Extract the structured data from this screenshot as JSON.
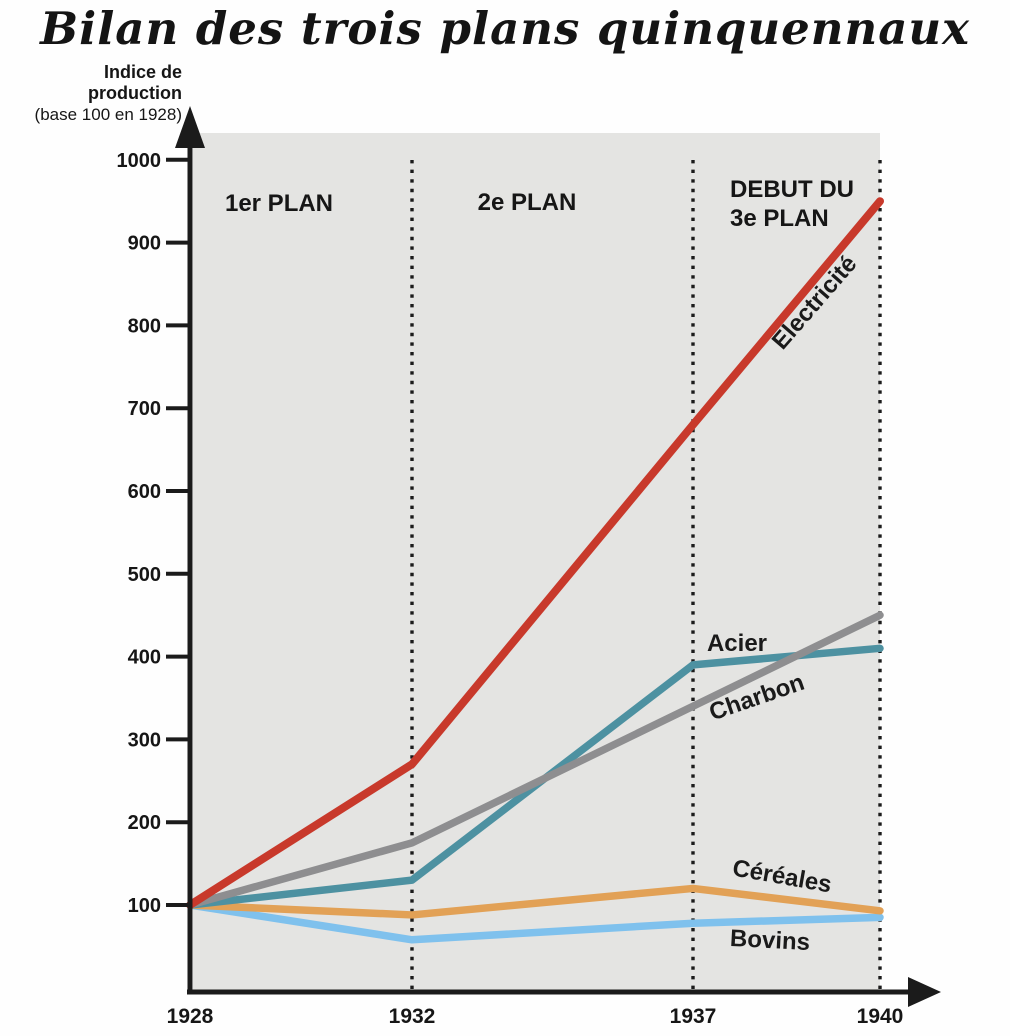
{
  "title": "Bilan des trois plans quinquennaux",
  "y_axis_label": {
    "line1": "Indice de",
    "line2": "production",
    "line3": "(base 100 en 1928)"
  },
  "plans": {
    "plan1": "1er PLAN",
    "plan2": "2e PLAN",
    "plan3_line1": "DEBUT DU",
    "plan3_line2": "3e PLAN"
  },
  "chart_data": {
    "type": "line",
    "title": "Bilan des trois plans quinquennaux",
    "ylabel": "Indice de production (base 100 en 1928)",
    "x": [
      1928,
      1932,
      1937,
      1940
    ],
    "x_tick_labels": [
      "1928",
      "1932",
      "1937",
      "1940"
    ],
    "y_ticks": [
      100,
      200,
      300,
      400,
      500,
      600,
      700,
      800,
      900,
      1000
    ],
    "ylim": [
      0,
      1050
    ],
    "grid": false,
    "legend_position": "inline-labels",
    "plot_background": "#e4e4e2",
    "axis_color": "#1b1b1b",
    "period_dividers_x": [
      1932,
      1937,
      1940
    ],
    "annotations": [
      "1er PLAN",
      "2e PLAN",
      "DEBUT DU 3e PLAN"
    ],
    "series": [
      {
        "name": "Electricité",
        "slug": "electricite",
        "color": "#c8392b",
        "values": [
          100,
          270,
          680,
          950
        ]
      },
      {
        "name": "Acier",
        "slug": "acier",
        "color": "#4d91a1",
        "values": [
          100,
          130,
          390,
          410
        ]
      },
      {
        "name": "Charbon",
        "slug": "charbon",
        "color": "#8e8e90",
        "values": [
          100,
          175,
          340,
          450
        ]
      },
      {
        "name": "Céréales",
        "slug": "cereales",
        "color": "#e2a156",
        "values": [
          100,
          88,
          120,
          93
        ]
      },
      {
        "name": "Bovins",
        "slug": "bovins",
        "color": "#7fc1ed",
        "values": [
          100,
          58,
          78,
          85
        ]
      }
    ]
  }
}
